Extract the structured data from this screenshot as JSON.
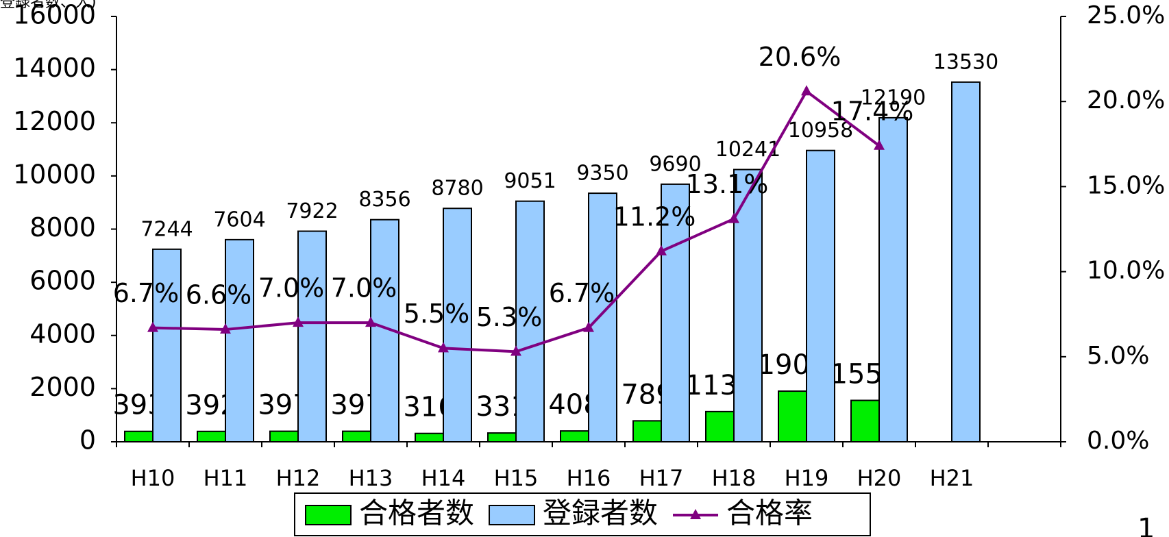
{
  "chart_data": {
    "type": "bar_line",
    "y_axis_label": "登録者数、人)",
    "page_number": "1",
    "categories": [
      "H10",
      "H11",
      "H12",
      "H13",
      "H14",
      "H15",
      "H16",
      "H17",
      "H18",
      "H19",
      "H20",
      "H21",
      null
    ],
    "series": [
      {
        "name": "合格者数",
        "type": "bar",
        "color": "#00ee00",
        "values": [
          393,
          392,
          397,
          397,
          316,
          331,
          408,
          789,
          1137,
          1905,
          1558,
          null,
          null
        ]
      },
      {
        "name": "登録者数",
        "type": "bar",
        "color": "#99ccff",
        "values": [
          7244,
          7604,
          7922,
          8356,
          8780,
          9051,
          9350,
          9690,
          10241,
          10958,
          12190,
          13530,
          null
        ]
      },
      {
        "name": "合格率",
        "type": "line",
        "axis": "y2",
        "color": "#800080",
        "values": [
          6.7,
          6.6,
          7.0,
          7.0,
          5.5,
          5.3,
          6.7,
          11.2,
          13.1,
          20.6,
          17.4,
          null,
          null
        ],
        "value_labels": [
          "6.7%",
          "6.6%",
          "7.0%",
          "7.0%",
          "5.5%",
          "5.3%",
          "6.7%",
          "11.2%",
          "13.1%",
          "20.6%",
          "17.4%",
          null,
          null
        ]
      }
    ],
    "ylim": [
      0,
      16000
    ],
    "yticks": [
      0,
      2000,
      4000,
      6000,
      8000,
      10000,
      12000,
      14000,
      16000
    ],
    "y2lim": [
      0,
      25
    ],
    "y2ticks": [
      {
        "value": 0,
        "label": "0.0%"
      },
      {
        "value": 5,
        "label": "5.0%"
      },
      {
        "value": 10,
        "label": "10.0%"
      },
      {
        "value": 15,
        "label": "15.0%"
      },
      {
        "value": 20,
        "label": "20.0%"
      },
      {
        "value": 25,
        "label": "25.0%"
      }
    ],
    "grid": false,
    "legend": "bottom"
  }
}
